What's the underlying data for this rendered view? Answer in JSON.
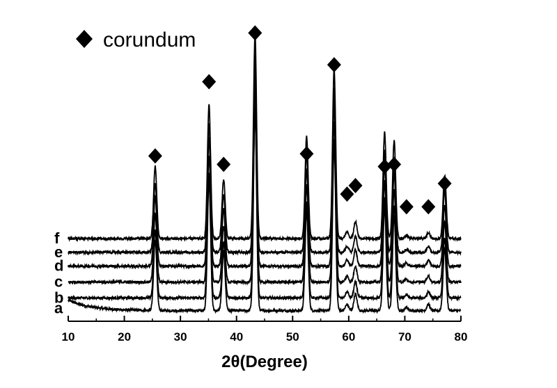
{
  "chart_data": {
    "type": "line",
    "xlabel": "2θ(Degree)",
    "xlim": [
      10,
      80
    ],
    "xticks": [
      10,
      20,
      30,
      40,
      50,
      60,
      70,
      80
    ],
    "y_axis_shown": false,
    "grid": false,
    "legend": {
      "marker": "diamond",
      "label": "corundum",
      "placement": "top-left"
    },
    "line_color": "#000000",
    "marker_color": "#000000",
    "series": [
      {
        "name": "a",
        "baseline": 0.0,
        "rise": 0.5,
        "peak_scale": 0.98
      },
      {
        "name": "b",
        "baseline": 0.6,
        "rise": 0.0,
        "peak_scale": 0.94
      },
      {
        "name": "c",
        "baseline": 1.35,
        "rise": 0.0,
        "peak_scale": 0.95
      },
      {
        "name": "d",
        "baseline": 2.1,
        "rise": 0.0,
        "peak_scale": 0.96
      },
      {
        "name": "e",
        "baseline": 2.75,
        "rise": 0.0,
        "peak_scale": 0.97
      },
      {
        "name": "f",
        "baseline": 3.4,
        "rise": 0.0,
        "peak_scale": 1.0
      }
    ],
    "peaks": [
      {
        "x": 25.5,
        "height": 3.4
      },
      {
        "x": 35.1,
        "height": 6.3
      },
      {
        "x": 37.7,
        "height": 2.8
      },
      {
        "x": 43.3,
        "height": 9.6
      },
      {
        "x": 52.5,
        "height": 4.8
      },
      {
        "x": 57.4,
        "height": 8.0
      },
      {
        "x": 59.7,
        "height": 0.3
      },
      {
        "x": 61.2,
        "height": 0.8
      },
      {
        "x": 66.4,
        "height": 5.0
      },
      {
        "x": 68.1,
        "height": 4.6
      },
      {
        "x": 70.3,
        "height": 0.15
      },
      {
        "x": 74.2,
        "height": 0.3
      },
      {
        "x": 77.1,
        "height": 3.0
      }
    ],
    "markers": [
      {
        "x": 25.5,
        "y": 7.3
      },
      {
        "x": 35.1,
        "y": 10.8
      },
      {
        "x": 37.7,
        "y": 6.9
      },
      {
        "x": 43.3,
        "y": 13.1
      },
      {
        "x": 52.5,
        "y": 7.4
      },
      {
        "x": 57.4,
        "y": 11.6
      },
      {
        "x": 59.7,
        "y": 5.5
      },
      {
        "x": 61.2,
        "y": 5.9
      },
      {
        "x": 66.4,
        "y": 6.8
      },
      {
        "x": 68.1,
        "y": 6.9
      },
      {
        "x": 70.3,
        "y": 4.9
      },
      {
        "x": 74.2,
        "y": 4.9
      },
      {
        "x": 77.1,
        "y": 6.0
      }
    ],
    "ylim": [
      -0.5,
      14.0
    ]
  }
}
